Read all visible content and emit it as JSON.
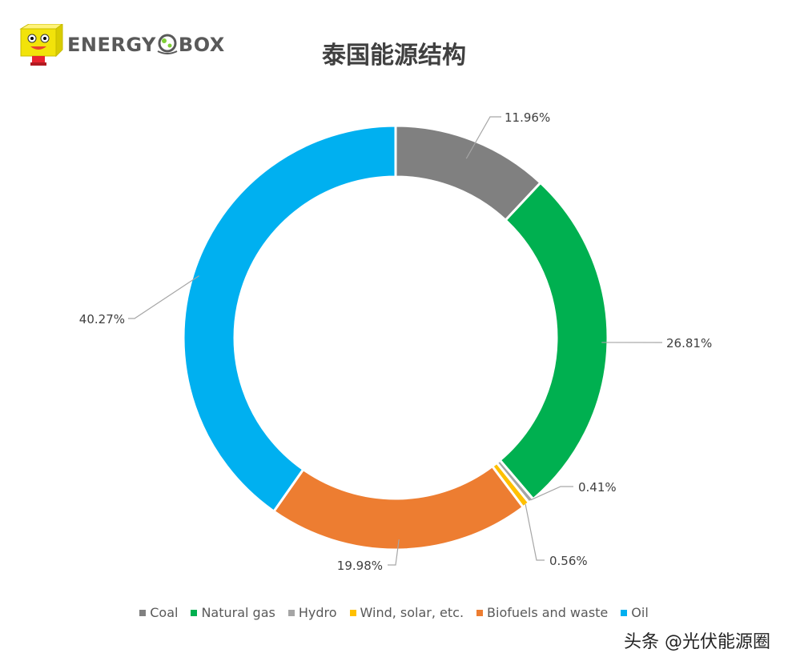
{
  "brand": {
    "logo_text": "ENERGYOBOX"
  },
  "watermark": "头条 @光伏能源圈",
  "chart_data": {
    "type": "donut",
    "title": "泰国能源结构",
    "legend_position": "bottom",
    "categories": [
      "Coal",
      "Natural gas",
      "Hydro",
      "Wind, solar, etc.",
      "Biofuels and waste",
      "Oil"
    ],
    "values": [
      11.96,
      26.81,
      0.41,
      0.56,
      19.98,
      40.27
    ],
    "labels": [
      "11.96%",
      "26.81%",
      "0.41%",
      "0.56%",
      "19.98%",
      "40.27%"
    ],
    "unit": "%",
    "colors": [
      "#808080",
      "#00b050",
      "#a5a5a5",
      "#ffc000",
      "#ed7d31",
      "#00b0f0"
    ]
  }
}
